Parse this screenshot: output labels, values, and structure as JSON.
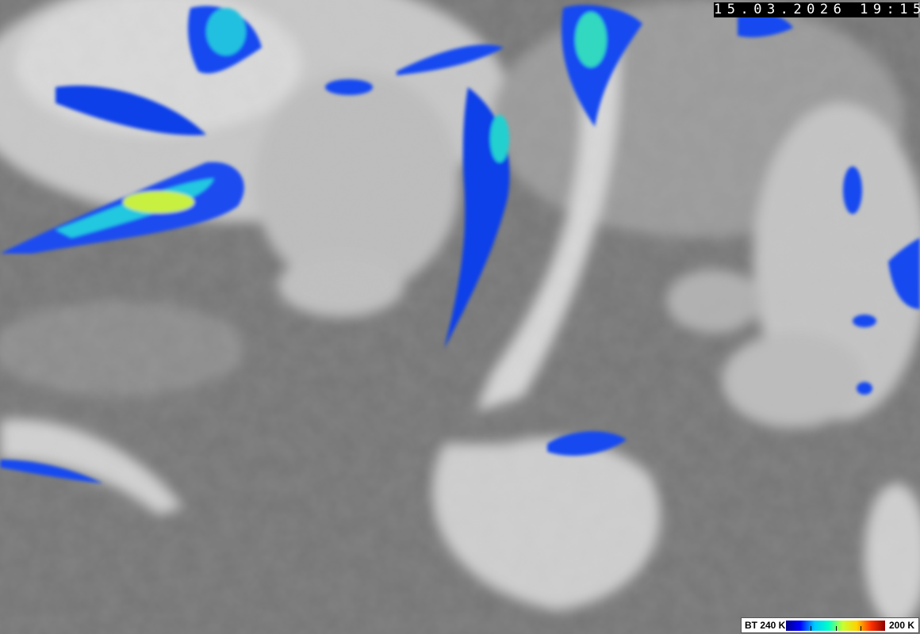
{
  "image": {
    "type": "enhanced infrared satellite image",
    "timestamp": "15.03.2026 19:15",
    "colors": {
      "background_gray": "#7a7a7a",
      "cloud_white": "#e6e6e6",
      "cold_blue": "#0a3cf0",
      "cyan": "#00d8f0",
      "yellow_green": "#d8f040"
    }
  },
  "legend": {
    "left_label": "BT 240 K",
    "right_label": "200 K",
    "gradient": [
      "#00008c",
      "#0000ff",
      "#00c8ff",
      "#00ffc8",
      "#c8ff32",
      "#ffd200",
      "#ff3200",
      "#8c0000"
    ]
  }
}
